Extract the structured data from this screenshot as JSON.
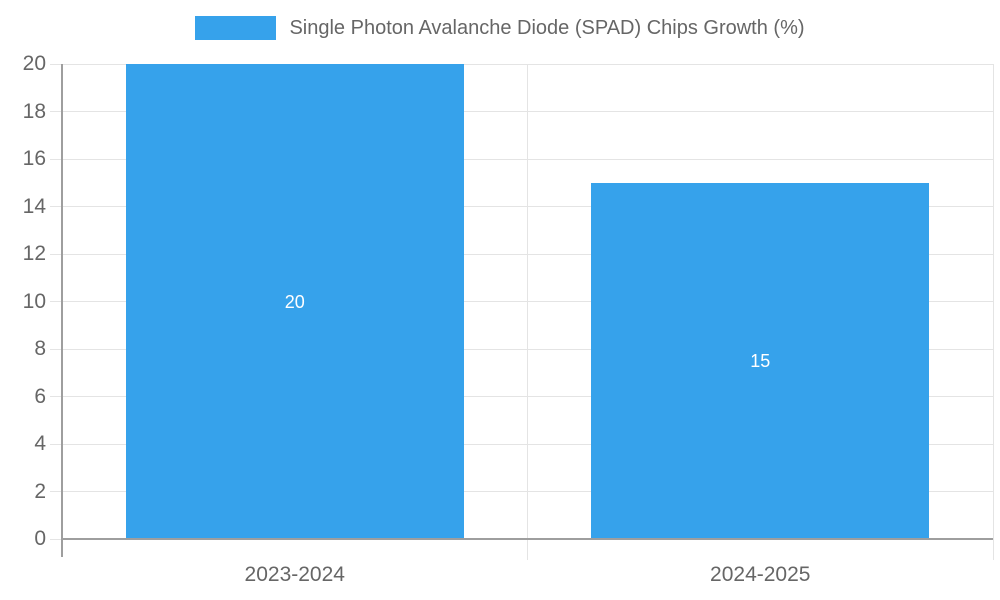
{
  "chart_data": {
    "type": "bar",
    "title": "",
    "legend": "Single Photon Avalanche Diode (SPAD) Chips Growth (%)",
    "legend_position": "top",
    "categories": [
      "2023-2024",
      "2024-2025"
    ],
    "values": [
      20,
      15
    ],
    "xlabel": "",
    "ylabel": "",
    "ylim": [
      0,
      20
    ],
    "yticks": [
      0,
      2,
      4,
      6,
      8,
      10,
      12,
      14,
      16,
      18,
      20
    ],
    "grid": true,
    "colors": {
      "bar": "#36A2EB",
      "tick_text": "#666666",
      "legend_text": "#666666",
      "grid": "#e4e4e4",
      "axis": "#9e9e9e",
      "bar_label_text": "#ffffff",
      "background": "#ffffff"
    }
  }
}
